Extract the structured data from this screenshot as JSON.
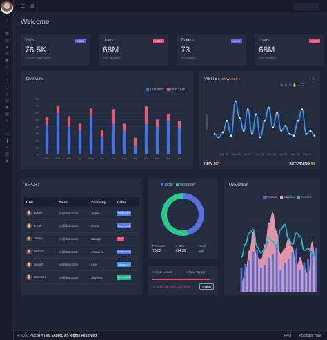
{
  "sidebar": {
    "icons": [
      "menu-icon",
      "home-icon",
      "grid-icon",
      "chart-icon",
      "layers-icon",
      "mail-icon",
      "calendar-icon",
      "user-icon",
      "file-icon",
      "settings-icon",
      "box-icon",
      "map-icon",
      "table-icon",
      "bell-icon",
      "lock-icon",
      "edit-icon",
      "star-icon",
      "monitor-icon",
      "bar-icon",
      "link-icon",
      "folder-icon",
      "shield-icon"
    ]
  },
  "page_title": "Welcome",
  "stats": [
    {
      "label": "Visits",
      "badge": "+10%",
      "badge_color": "#6c63e8",
      "value": "76.5K",
      "sub": "275,456 Target Users"
    },
    {
      "label": "Users",
      "badge": "+10%",
      "badge_color": "#e8507a",
      "value": "68M",
      "sub": "90% Targeted"
    },
    {
      "label": "Tickets",
      "badge": "-1.2%",
      "badge_color": "#6c63e8",
      "value": "73",
      "sub": "100 Regular"
    },
    {
      "label": "Users",
      "badge": "+10%",
      "badge_color": "#e8507a",
      "value": "68M",
      "sub": "90% Targeted"
    }
  ],
  "overview_bar": {
    "title": "Overview",
    "legend": [
      {
        "label": "This Year",
        "color": "#4a72e0"
      },
      {
        "label": "Past Year",
        "color": "#e85a6a"
      }
    ],
    "chart_data": {
      "type": "bar",
      "stacked": true,
      "categories": [
        "Feb",
        "Mar",
        "Mar",
        "Apr",
        "May",
        "Jun",
        "Jul",
        "Aug",
        "Sep",
        "Oct",
        "Nov",
        "Dec",
        "Jan"
      ],
      "series": [
        {
          "name": "This Year",
          "values": [
            43,
            59,
            40,
            34,
            56,
            25,
            44,
            34,
            12,
            44,
            40,
            48,
            38
          ]
        },
        {
          "name": "Past Year",
          "values": [
            10,
            10,
            15,
            10,
            10,
            10,
            21,
            10,
            12,
            25,
            10,
            10,
            10
          ]
        }
      ],
      "yticks": [
        0,
        10,
        20,
        30,
        40,
        50,
        60,
        70,
        80
      ],
      "ylim": [
        0,
        80
      ]
    }
  },
  "visits_chart": {
    "title": "VISITS",
    "filter": "LAST WEEKS ▾",
    "filter_color": "#f0a02a",
    "new_label": "NEW",
    "new_value": "107",
    "returning_label": "RETURNING",
    "returning_value": "55",
    "chart_data": {
      "type": "line",
      "ylabel": "Engagement",
      "xticks": [
        "Mar '00",
        "May '00",
        "Jul '00",
        "Sep '00",
        "Nov '00",
        "Jan '01",
        "Mar '01",
        "May '01"
      ],
      "values": [
        10,
        8,
        11,
        18,
        9,
        30,
        20,
        12,
        25,
        10,
        22,
        8,
        18,
        26,
        14,
        23,
        12,
        15,
        10,
        9,
        18,
        25,
        10,
        12,
        9
      ]
    }
  },
  "report": {
    "title": "REPORT",
    "columns": [
      "User",
      "Email",
      "Company",
      "Status"
    ],
    "rows": [
      {
        "user": "Johen",
        "email": "xy@dum.com",
        "company": "Xcesk",
        "status": "New Lead",
        "status_color": "#5a78e6"
      },
      {
        "user": "J.KO",
        "email": "xy@dum.com",
        "company": "Domi",
        "status": "New Lead",
        "status_color": "#5a78e6"
      },
      {
        "user": "Momo",
        "email": "xy@dum.com",
        "company": "Google",
        "status": "Lost",
        "status_color": "#e84a7a"
      },
      {
        "user": "William",
        "email": "xy@dum.com",
        "company": "Amazon",
        "status": "New Lead",
        "status_color": "#5a78e6"
      },
      {
        "user": "Seifert",
        "email": "xy@dum.com",
        "company": "Live",
        "status": "Follow Up",
        "status_color": "#3a8fd8"
      },
      {
        "user": "Sammer",
        "email": "xy@dum.com",
        "company": "Skyblog",
        "status": "Converted",
        "status_color": "#2bb58a"
      }
    ]
  },
  "donut": {
    "legend": [
      {
        "label": "Today",
        "color": "#5a70e0"
      },
      {
        "label": "Yesterday",
        "color": "#2bc98f"
      }
    ],
    "chart_data": {
      "type": "pie",
      "labels": [
        "Today",
        "Yesterday"
      ],
      "values": [
        46,
        54
      ]
    },
    "metrics": [
      {
        "label": "Previous",
        "value": "79.82"
      },
      {
        "label": "% Cha",
        "value": "+14.29"
      },
      {
        "label": "Trend",
        "value": ""
      }
    ]
  },
  "leads": {
    "new_leads": "New Leads",
    "new_leads_color": "#5a70e0",
    "new_target": "New Target",
    "new_target_color": "#e84a5a",
    "progress": 0.95,
    "note": "+5.5% Up From Last Week",
    "note_color": "#e84a5a",
    "report_button": "Report"
  },
  "overview_area": {
    "title": "OVERVIEW",
    "legend": [
      {
        "label": "Product",
        "color": "#4a72e0"
      },
      {
        "label": "Supplier",
        "color": "#f5a0b4"
      },
      {
        "label": "Investor",
        "color": "#2bb5c0"
      }
    ],
    "chart_data": {
      "type": "area",
      "series": [
        {
          "name": "Product",
          "values": [
            15,
            12,
            10,
            14,
            9,
            15,
            11,
            13,
            10,
            16,
            12,
            14,
            11,
            13,
            10,
            12,
            14,
            11,
            15,
            12
          ]
        },
        {
          "name": "Supplier",
          "values": [
            10,
            25,
            48,
            70,
            40,
            38,
            55,
            80,
            92,
            70,
            44,
            50,
            62,
            52,
            30,
            40,
            28,
            20,
            58,
            36
          ]
        },
        {
          "name": "Investor",
          "values": [
            40,
            55,
            68,
            72,
            52,
            45,
            50,
            62,
            58,
            52,
            72,
            78,
            62,
            55,
            68,
            64,
            48,
            50,
            44,
            40
          ]
        }
      ],
      "ylim": [
        0,
        100
      ]
    }
  },
  "footer": {
    "copyright": "© 2020",
    "company": "Psd to HTML Expert,",
    "rights": "All Rights Reserved.",
    "links": [
      "FAQ",
      "Purchase Now"
    ]
  }
}
